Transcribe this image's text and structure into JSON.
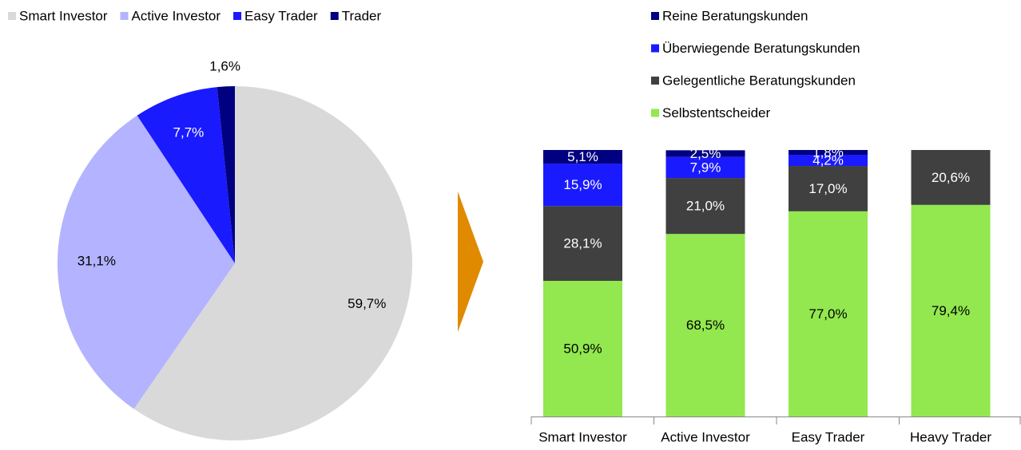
{
  "chart_data": [
    {
      "type": "pie",
      "categories": [
        "Smart Investor",
        "Active Investor",
        "Easy Trader",
        "Trader"
      ],
      "values": [
        59.7,
        31.1,
        7.7,
        1.6
      ],
      "value_labels": [
        "59,7%",
        "31,1%",
        "7,7%",
        "1,6%"
      ],
      "colors": [
        "#d9d9d9",
        "#b3b3ff",
        "#1a1aff",
        "#000080"
      ]
    },
    {
      "type": "stacked_bar",
      "categories": [
        "Smart Investor",
        "Active Investor",
        "Easy Trader",
        "Heavy Trader"
      ],
      "ylim": [
        0,
        100
      ],
      "series": [
        {
          "name": "Selbstentscheider",
          "color": "#92e84e",
          "values": [
            50.9,
            68.5,
            77.0,
            79.4
          ],
          "value_labels": [
            "50,9%",
            "68,5%",
            "77,0%",
            "79,4%"
          ]
        },
        {
          "name": "Gelegentliche Beratungskunden",
          "color": "#404040",
          "values": [
            28.1,
            21.0,
            17.0,
            20.6
          ],
          "value_labels": [
            "28,1%",
            "21,0%",
            "17,0%",
            "20,6%"
          ]
        },
        {
          "name": "Überwiegende Beratungskunden",
          "color": "#1a1aff",
          "values": [
            15.9,
            7.9,
            4.2,
            null
          ],
          "value_labels": [
            "15,9%",
            "7,9%",
            "4,2%",
            null
          ]
        },
        {
          "name": "Reine Beratungskunden",
          "color": "#000080",
          "values": [
            5.1,
            2.5,
            1.8,
            null
          ],
          "value_labels": [
            "5,1%",
            "2,5%",
            "1,8%",
            null
          ]
        }
      ]
    }
  ]
}
